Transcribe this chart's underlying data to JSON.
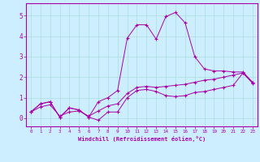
{
  "xlabel": "Windchill (Refroidissement éolien,°C)",
  "ylabel": "",
  "background_color": "#cceeff",
  "grid_color": "#aadddd",
  "line_color": "#aa00aa",
  "xlim": [
    -0.5,
    23.5
  ],
  "ylim": [
    -0.4,
    5.6
  ],
  "xticks": [
    0,
    1,
    2,
    3,
    4,
    5,
    6,
    7,
    8,
    9,
    10,
    11,
    12,
    13,
    14,
    15,
    16,
    17,
    18,
    19,
    20,
    21,
    22,
    23
  ],
  "yticks": [
    0,
    1,
    2,
    3,
    4,
    5
  ],
  "line1": [
    0.3,
    0.7,
    0.8,
    0.05,
    0.5,
    0.4,
    0.05,
    -0.1,
    0.3,
    0.3,
    1.0,
    1.35,
    1.4,
    1.3,
    1.1,
    1.05,
    1.1,
    1.25,
    1.3,
    1.4,
    1.5,
    1.6,
    2.2,
    1.7
  ],
  "line2": [
    0.3,
    0.7,
    0.8,
    0.05,
    0.5,
    0.4,
    0.05,
    0.8,
    1.0,
    1.35,
    3.9,
    4.55,
    4.55,
    3.85,
    4.95,
    5.15,
    4.65,
    3.0,
    2.4,
    2.3,
    2.3,
    2.25,
    2.25,
    1.75
  ],
  "line3": [
    0.3,
    0.55,
    0.65,
    0.1,
    0.3,
    0.35,
    0.1,
    0.35,
    0.6,
    0.7,
    1.2,
    1.5,
    1.55,
    1.5,
    1.55,
    1.6,
    1.65,
    1.75,
    1.85,
    1.9,
    2.0,
    2.1,
    2.2,
    1.75
  ]
}
